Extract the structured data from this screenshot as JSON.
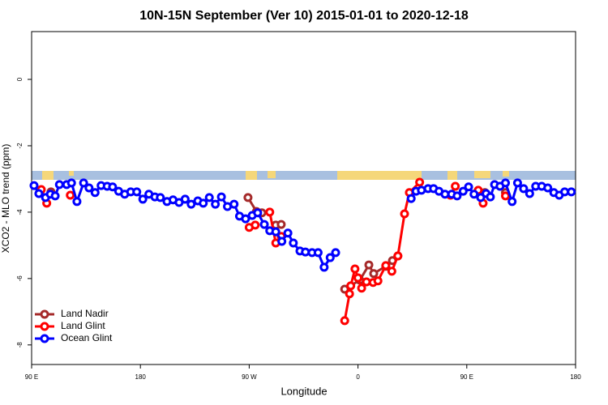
{
  "chart_data": {
    "type": "line",
    "title": "10N-15N September (Ver 10)   2015-01-01 to 2020-12-18",
    "x_label": "Longitude",
    "y_label": "XCO2 - MLO trend (ppm)",
    "xlim": [
      90,
      540
    ],
    "xticks": [
      {
        "value": 90,
        "label": "90 E"
      },
      180,
      {
        "value": 270,
        "label": "90 W"
      },
      {
        "value": 360,
        "label": "0"
      },
      {
        "value": 450,
        "label": "90 E"
      },
      {
        "value": 540,
        "label": "180"
      }
    ],
    "ylim": [
      -8.59,
      1.44
    ],
    "yticks": [
      0,
      -2,
      -4,
      -6,
      -8
    ],
    "legend": "bottom-left",
    "series": [
      {
        "name": "Land Nadir",
        "color": "#a52a2a",
        "x": [
          106,
          null,
          269,
          276,
          280.5,
          null,
          292,
          296.5,
          null,
          349,
          361.5,
          369,
          373,
          383,
          388.5,
          393,
          null,
          465,
          null,
          482
        ],
        "values": [
          -3.39,
          null,
          -3.56,
          -3.98,
          -4.02,
          null,
          -4.39,
          -4.37,
          null,
          -6.32,
          -6.05,
          -5.59,
          -5.85,
          -5.63,
          -5.46,
          -5.32,
          null,
          -3.41,
          null,
          -3.41
        ]
      },
      {
        "name": "Land Glint",
        "color": "#ff0000",
        "x": [
          98,
          102.5,
          null,
          122,
          null,
          270,
          275,
          null,
          287,
          292,
          296.5,
          null,
          349,
          353,
          354,
          357.5,
          360,
          363,
          367,
          372.5,
          376.5,
          383,
          388,
          393,
          398.5,
          402.5,
          411,
          null,
          436.5,
          440.5,
          null,
          459.5,
          463.5,
          null,
          482
        ],
        "values": [
          -3.32,
          -3.73,
          null,
          -3.49,
          null,
          -4.46,
          -4.39,
          null,
          -4.0,
          -4.93,
          -4.73,
          null,
          -7.27,
          -6.46,
          -6.22,
          -5.71,
          -5.98,
          -6.29,
          -6.1,
          -6.12,
          -6.07,
          -5.61,
          -5.78,
          -5.32,
          -4.05,
          -3.41,
          -3.1,
          null,
          -3.49,
          -3.22,
          null,
          -3.34,
          -3.73,
          null,
          -3.51
        ]
      },
      {
        "name": "Ocean Glint",
        "color": "#0000ff",
        "x": [
          92,
          96,
          101.5,
          105.5,
          109.5,
          113,
          119,
          123,
          127.5,
          133,
          137.5,
          142.5,
          147.5,
          152.5,
          157,
          162,
          167,
          172,
          177,
          182,
          187,
          192,
          196.5,
          202,
          207,
          212,
          217,
          222,
          227.5,
          232,
          237,
          242,
          247,
          252,
          257.5,
          262,
          267,
          272.5,
          277,
          282.5,
          287,
          292,
          297,
          302,
          306.5,
          312,
          316.5,
          322,
          327,
          332,
          337,
          341.5,
          null,
          404,
          408,
          412.5,
          418,
          422.5,
          427,
          432,
          437.5,
          442,
          447,
          451.5,
          456,
          461.5,
          466,
          469.5,
          473,
          477.5,
          482,
          487.5,
          492,
          497,
          502,
          507,
          512,
          517,
          522,
          526.5,
          531,
          536.5
        ],
        "values": [
          -3.2,
          -3.44,
          -3.56,
          -3.46,
          -3.51,
          -3.17,
          -3.17,
          -3.12,
          -3.68,
          -3.12,
          -3.27,
          -3.41,
          -3.2,
          -3.22,
          -3.24,
          -3.37,
          -3.46,
          -3.39,
          -3.39,
          -3.61,
          -3.46,
          -3.54,
          -3.56,
          -3.68,
          -3.63,
          -3.71,
          -3.61,
          -3.76,
          -3.66,
          -3.73,
          -3.56,
          -3.76,
          -3.54,
          -3.83,
          -3.76,
          -4.12,
          -4.2,
          -4.1,
          -4.02,
          -4.37,
          -4.56,
          -4.59,
          -4.88,
          -4.63,
          -4.93,
          -5.17,
          -5.2,
          -5.22,
          -5.22,
          -5.66,
          -5.37,
          -5.22,
          null,
          -3.59,
          -3.37,
          -3.34,
          -3.29,
          -3.29,
          -3.37,
          -3.46,
          -3.46,
          -3.51,
          -3.37,
          -3.24,
          -3.46,
          -3.56,
          -3.44,
          -3.54,
          -3.17,
          -3.22,
          -3.12,
          -3.68,
          -3.12,
          -3.29,
          -3.44,
          -3.22,
          -3.22,
          -3.27,
          -3.41,
          -3.49,
          -3.39,
          -3.39
        ]
      }
    ]
  }
}
